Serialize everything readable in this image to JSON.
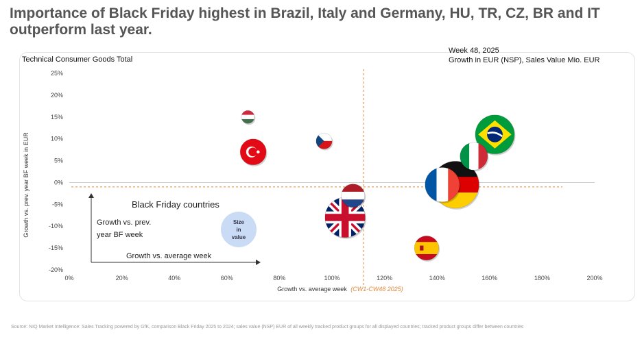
{
  "title": "Importance of Black Friday highest in Brazil, Italy and Germany, HU, TR, CZ, BR and IT outperform last year.",
  "subtitle_left": "Technical Consumer Goods Total",
  "subtitle_right_line1": "Week 48, 2025",
  "subtitle_right_line2": "Growth in EUR (NSP), Sales Value Mio. EUR",
  "source": "Source: NIQ Market Intelligence: Sales Tracking powered by GfK, comparison Black Friday 2025 to 2024; sales value (NSP) EUR of all weekly tracked product groups for all displayed countries; tracked product groups differ between countries",
  "legend": {
    "heading": "Black Friday countries",
    "y_line1": "Growth vs. prev.",
    "y_line2": "year BF week",
    "x_label": "Growth vs. average week",
    "size_line1": "Size",
    "size_line2": "in",
    "size_line3": "value"
  },
  "chart_data": {
    "type": "scatter",
    "xlabel": "Growth vs. average week",
    "xlabel_suffix": "(CW1-CW48 2025)",
    "ylabel": "Growth vs. prev. year BF week in EUR",
    "xlim": [
      0,
      200
    ],
    "ylim": [
      -20,
      25
    ],
    "x_ticks": [
      "0%",
      "20%",
      "40%",
      "60%",
      "80%",
      "100%",
      "120%",
      "140%",
      "160%",
      "180%",
      "200%"
    ],
    "y_ticks": [
      "25%",
      "20%",
      "15%",
      "10%",
      "5%",
      "0%",
      "-5%",
      "-10%",
      "-15%",
      "-20%"
    ],
    "reference_lines": {
      "x": 112,
      "y": -1
    },
    "points": [
      {
        "country": "HU",
        "x": 68,
        "y": 15,
        "size": 1
      },
      {
        "country": "CZ",
        "x": 97,
        "y": 9.5,
        "size": 1.5
      },
      {
        "country": "TR",
        "x": 70,
        "y": 7,
        "size": 4
      },
      {
        "country": "BR",
        "x": 162,
        "y": 11,
        "size": 9
      },
      {
        "country": "IT",
        "x": 154,
        "y": 6,
        "size": 4.5
      },
      {
        "country": "DE",
        "x": 147,
        "y": -0.5,
        "size": 13
      },
      {
        "country": "FR",
        "x": 142,
        "y": -0.5,
        "size": 7
      },
      {
        "country": "NL",
        "x": 108,
        "y": -3,
        "size": 3.2
      },
      {
        "country": "GB",
        "x": 105,
        "y": -8,
        "size": 9.5
      },
      {
        "country": "ES",
        "x": 136,
        "y": -15,
        "size": 3.5
      }
    ],
    "colors": {
      "reference_line": "#e0893a",
      "x_suffix": "#e0893a",
      "size_bubble": "#c9dbf5"
    }
  }
}
